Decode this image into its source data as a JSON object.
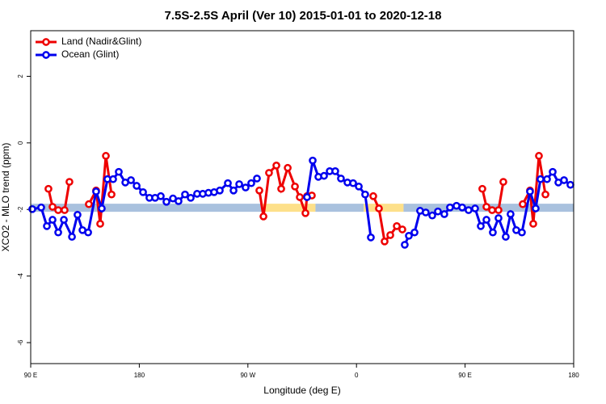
{
  "chart_data": {
    "type": "line",
    "title": "7.5S-2.5S April (Ver 10)   2015-01-01 to 2020-12-18",
    "xlabel": "Longitude (deg E)",
    "ylabel": "XCO2 - MLO trend (ppm)",
    "xlim": [
      90,
      540
    ],
    "xticks": [
      {
        "value": 90,
        "label": "90 E"
      },
      180,
      {
        "value": 270,
        "label": "90 W"
      },
      {
        "value": 360,
        "label": "0"
      },
      {
        "value": 450,
        "label": "90 E"
      },
      {
        "value": 540,
        "label": "180"
      }
    ],
    "ylim": [
      -6.63,
      3.37
    ],
    "yticks": [
      2,
      0,
      -2,
      -4,
      -6
    ],
    "legend": "top-left",
    "band": {
      "value": -1.95,
      "segments": [
        {
          "x": [
            90,
            282
          ],
          "color": "#a9c1de"
        },
        {
          "x": [
            282,
            326
          ],
          "color": "#fde08a"
        },
        {
          "x": [
            326,
            366
          ],
          "color": "#a9c1de"
        },
        {
          "x": [
            366,
            399
          ],
          "color": "#fde08a"
        },
        {
          "x": [
            399,
            540
          ],
          "color": "#a9c1de"
        }
      ]
    },
    "series": [
      {
        "name": "Land (Nadir&Glint)",
        "color": "#ee0000",
        "x": [
          104.7,
          108.1,
          112.8,
          118.1,
          122.1,
          null,
          138.2,
          144.2,
          147.6,
          152.3,
          157.0,
          null,
          279.5,
          282.9,
          287.5,
          293.6,
          297.6,
          303.0,
          309.0,
          313.0,
          317.7,
          319.0,
          323.0,
          null,
          373.9,
          378.6,
          383.3,
          388.0,
          393.4,
          398.0,
          null,
          464.3,
          467.7,
          472.4,
          477.7,
          481.7,
          null,
          497.8,
          503.8,
          506.5,
          511.2,
          516.6
        ],
        "values": [
          -1.38,
          -1.92,
          -2.02,
          -2.02,
          -1.17,
          null,
          -1.84,
          -1.43,
          -2.43,
          -0.39,
          -1.55,
          null,
          -1.43,
          -2.21,
          -0.9,
          -0.68,
          -1.38,
          -0.75,
          -1.31,
          -1.63,
          -2.11,
          -1.6,
          -1.58,
          null,
          -1.6,
          -1.97,
          -2.96,
          -2.77,
          -2.5,
          -2.6,
          null,
          -1.38,
          -1.92,
          -2.02,
          -2.02,
          -1.17,
          null,
          -1.84,
          -1.43,
          -2.43,
          -0.39,
          -1.55
        ]
      },
      {
        "name": "Ocean (Glint)",
        "color": "#0000ee",
        "x": [
          91.3,
          98.7,
          103.4,
          108.1,
          112.8,
          117.5,
          124.2,
          128.8,
          132.9,
          137.6,
          144.2,
          148.9,
          153.6,
          158.3,
          163.0,
          168.4,
          173.1,
          177.8,
          183.1,
          188.4,
          193.1,
          197.8,
          202.5,
          207.9,
          212.5,
          217.9,
          222.6,
          227.9,
          232.6,
          237.3,
          242.0,
          246.7,
          253.4,
          258.1,
          262.8,
          268.1,
          272.8,
          277.5,
          null,
          319.0,
          323.7,
          328.4,
          333.1,
          337.8,
          342.4,
          347.1,
          352.5,
          357.2,
          361.9,
          367.2,
          371.9,
          null,
          400.0,
          403.4,
          408.1,
          412.7,
          417.4,
          422.8,
          427.5,
          432.8,
          437.5,
          442.9,
          447.6,
          452.9,
          458.3,
          463.0,
          467.7,
          473.0,
          477.7,
          483.7,
          487.7,
          492.4,
          497.1,
          503.8,
          508.5,
          512.5,
          517.9,
          522.6,
          527.3,
          532.0,
          537.3
        ],
        "values": [
          -1.99,
          -1.94,
          -2.5,
          -2.31,
          -2.69,
          -2.31,
          -2.82,
          -2.16,
          -2.62,
          -2.69,
          -1.46,
          -1.97,
          -1.09,
          -1.09,
          -0.87,
          -1.19,
          -1.12,
          -1.29,
          -1.48,
          -1.65,
          -1.65,
          -1.6,
          -1.77,
          -1.67,
          -1.75,
          -1.55,
          -1.65,
          -1.53,
          -1.53,
          -1.5,
          -1.48,
          -1.43,
          -1.21,
          -1.43,
          -1.24,
          -1.34,
          -1.21,
          -1.07,
          null,
          -1.63,
          -0.53,
          -1.02,
          -0.99,
          -0.85,
          -0.85,
          -1.07,
          -1.19,
          -1.21,
          -1.31,
          -1.55,
          -2.84,
          null,
          -3.06,
          -2.79,
          -2.69,
          -2.04,
          -2.09,
          -2.18,
          -2.06,
          -2.14,
          -1.94,
          -1.89,
          -1.94,
          -2.02,
          -1.97,
          -2.5,
          -2.31,
          -2.69,
          -2.26,
          -2.82,
          -2.14,
          -2.62,
          -2.69,
          -1.46,
          -1.97,
          -1.09,
          -1.09,
          -0.87,
          -1.19,
          -1.12,
          -1.26
        ]
      }
    ]
  }
}
